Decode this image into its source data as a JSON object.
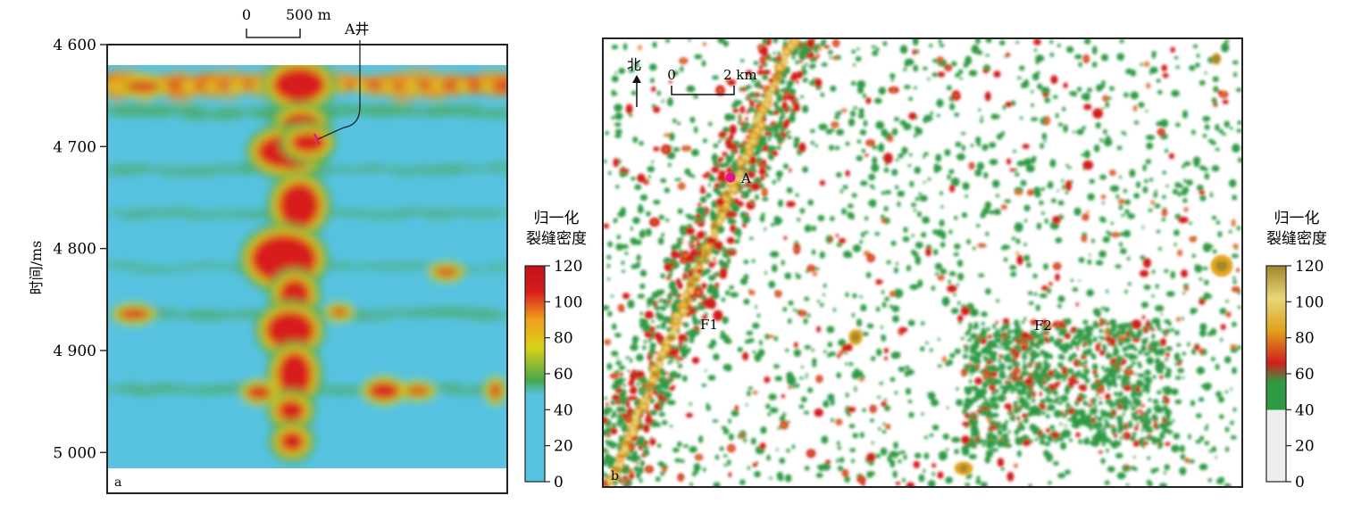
{
  "chart_data": [
    {
      "type": "heatmap",
      "panel": "a",
      "ylabel": "时间/ms",
      "yticks": [
        4600,
        4700,
        4800,
        4900,
        5000
      ],
      "ytick_labels": [
        "4 600",
        "4 700",
        "4 800",
        "4 900",
        "5 000"
      ],
      "ylim": [
        4600,
        5040
      ],
      "scale_bar": {
        "start_label": "0",
        "end_label": "500 m"
      },
      "well_label": "A井",
      "colorbar": {
        "title_line1": "归一化",
        "title_line2": "裂缝密度",
        "ticks": [
          0,
          20,
          40,
          60,
          80,
          100,
          120
        ],
        "range": [
          0,
          120
        ],
        "colors": [
          "#57c3e1",
          "#57c3e1",
          "#57c3e1",
          "#49a54a",
          "#d8d21a",
          "#f0a01e",
          "#d81d1c",
          "#c2101a"
        ]
      }
    },
    {
      "type": "heatmap",
      "panel": "b",
      "north_label": "北",
      "scale_bar": {
        "start_label": "0",
        "end_label": "2 km"
      },
      "well_label": "A",
      "fault_labels": [
        "F1",
        "F2"
      ],
      "colorbar": {
        "title_line1": "归一化",
        "title_line2": "裂缝密度",
        "ticks": [
          0,
          20,
          40,
          60,
          80,
          100,
          120
        ],
        "range": [
          0,
          120
        ],
        "colors": [
          "#eeeeee",
          "#eeeeee",
          "#2f9a44",
          "#d11f1f",
          "#e0a21a",
          "#e8d77a",
          "#a0862e"
        ]
      }
    }
  ],
  "panel_labels": [
    "a",
    "b"
  ],
  "colors": {
    "well_marker": "#e8128c",
    "panel_a_background": "#57c3e1",
    "panel_b_background": "#ffffff"
  }
}
